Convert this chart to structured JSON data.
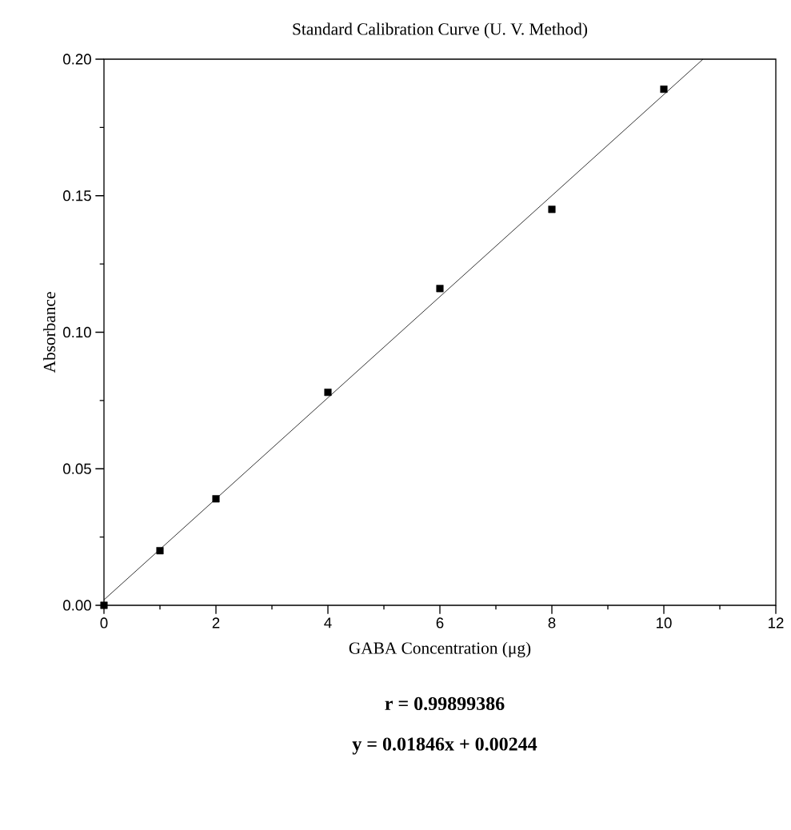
{
  "chart_data": {
    "type": "scatter",
    "title": "Standard Calibration Curve (U. V. Method)",
    "xlabel": "GABA Concentration (μg)",
    "ylabel": "Absorbance",
    "x": [
      0,
      1,
      2,
      4,
      6,
      8,
      10
    ],
    "series": [
      {
        "type": "scatter",
        "color": "#000000",
        "marker": "square",
        "values": [
          0.0,
          0.02,
          0.039,
          0.078,
          0.116,
          0.145,
          0.189
        ]
      },
      {
        "type": "line",
        "color": "#000000",
        "line_style": "solid",
        "marker": "none",
        "x": [
          0,
          10.7
        ],
        "values": [
          0.002,
          0.2
        ]
      }
    ],
    "xlim": [
      0,
      12
    ],
    "ylim": [
      0,
      0.2
    ],
    "xticks": [
      0,
      2,
      4,
      6,
      8,
      10,
      12
    ],
    "yticks": [
      {
        "value": 0,
        "label": "0.00"
      },
      {
        "value": 0.05,
        "label": "0.05"
      },
      {
        "value": 0.1,
        "label": "0.10"
      },
      {
        "value": 0.15,
        "label": "0.15"
      },
      {
        "value": 0.2,
        "label": "0.20"
      }
    ],
    "grid": false,
    "annotations": [
      "r = 0.99899386",
      "y = 0.01846x + 0.00244"
    ]
  }
}
